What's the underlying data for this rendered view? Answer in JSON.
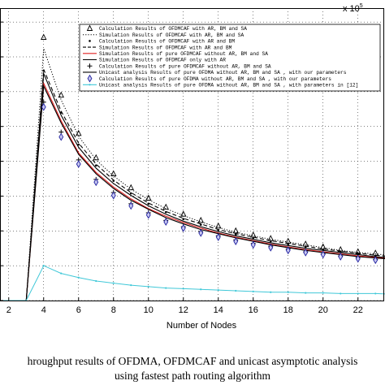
{
  "chart_data": {
    "type": "line",
    "xlabel": "Number of Nodes",
    "ylabel": "",
    "y_multiplier_label": "x 10",
    "y_multiplier_exponent": "5",
    "xlim": [
      1.5,
      23.5
    ],
    "ylim": [
      0,
      4.2
    ],
    "x_ticks": [
      2,
      4,
      6,
      8,
      10,
      12,
      14,
      16,
      18,
      20,
      22
    ],
    "y_gridlines": [
      0,
      0.5,
      1,
      1.5,
      2,
      2.5,
      3,
      3.5,
      4
    ],
    "grid": true,
    "legend_position": "top-right",
    "x": [
      1,
      2,
      3,
      4,
      5,
      6,
      7,
      8,
      9,
      10,
      11,
      12,
      13,
      14,
      15,
      16,
      17,
      18,
      19,
      20,
      21,
      22,
      23,
      24
    ],
    "series": [
      {
        "name": "Calculation Results of OFDMCAF with AR, BM and SA",
        "style": "triangle",
        "color": "#000000",
        "values": [
          0,
          0,
          0,
          3.78,
          2.95,
          2.4,
          2.05,
          1.82,
          1.62,
          1.47,
          1.34,
          1.24,
          1.15,
          1.07,
          1.0,
          0.94,
          0.89,
          0.85,
          0.81,
          0.77,
          0.73,
          0.7,
          0.68,
          0.65
        ]
      },
      {
        "name": "Simulation Results of OFDMCAF with AR, BM and SA",
        "style": "dotted",
        "color": "#000000",
        "values": [
          0,
          0,
          0,
          3.62,
          2.88,
          2.36,
          2.02,
          1.79,
          1.6,
          1.45,
          1.32,
          1.22,
          1.13,
          1.05,
          0.98,
          0.93,
          0.88,
          0.84,
          0.8,
          0.76,
          0.72,
          0.69,
          0.67,
          0.64
        ]
      },
      {
        "name": "Calculation Results of OFDMCAF with AR and BM",
        "style": "point",
        "color": "#000000",
        "values": [
          0,
          0,
          0,
          3.3,
          2.7,
          2.24,
          1.94,
          1.72,
          1.54,
          1.39,
          1.27,
          1.17,
          1.09,
          1.01,
          0.95,
          0.9,
          0.85,
          0.81,
          0.77,
          0.73,
          0.7,
          0.67,
          0.64,
          0.62
        ]
      },
      {
        "name": "Simulation Results of OFDMCAF with AR and BM",
        "style": "dashed",
        "color": "#000000",
        "values": [
          0,
          0,
          0,
          3.32,
          2.72,
          2.26,
          1.96,
          1.73,
          1.55,
          1.4,
          1.28,
          1.18,
          1.1,
          1.02,
          0.96,
          0.91,
          0.86,
          0.82,
          0.78,
          0.74,
          0.71,
          0.68,
          0.65,
          0.63
        ]
      },
      {
        "name": "Simulation Results of pure OFDMCAF without AR, BM and SA",
        "style": "solid",
        "color": "#e02020",
        "values": [
          0,
          0,
          0,
          3.12,
          2.58,
          2.12,
          1.84,
          1.63,
          1.46,
          1.32,
          1.21,
          1.12,
          1.04,
          0.97,
          0.91,
          0.86,
          0.81,
          0.77,
          0.73,
          0.7,
          0.67,
          0.64,
          0.62,
          0.6
        ]
      },
      {
        "name": "Simulation Results of OFDMCAF only with AR",
        "style": "solid",
        "color": "#000000",
        "values": [
          0,
          0,
          0,
          3.26,
          2.66,
          2.2,
          1.9,
          1.68,
          1.51,
          1.36,
          1.24,
          1.14,
          1.06,
          0.99,
          0.93,
          0.88,
          0.83,
          0.79,
          0.75,
          0.72,
          0.69,
          0.66,
          0.63,
          0.61
        ]
      },
      {
        "name": "Calculation Results of pure OFDMCAF without AR, BM and SA",
        "style": "plus",
        "color": "#000000",
        "values": [
          0,
          0,
          0,
          2.85,
          2.42,
          2.02,
          1.74,
          1.55,
          1.39,
          1.26,
          1.15,
          1.06,
          0.99,
          0.93,
          0.87,
          0.82,
          0.78,
          0.74,
          0.7,
          0.67,
          0.64,
          0.62,
          0.59,
          0.57
        ]
      },
      {
        "name": "Unicast analysis Results of pure OFDMA without AR, BM and SA , with our parameters",
        "style": "solid",
        "color": "#000000",
        "values": [
          0,
          0,
          0,
          3.08,
          2.55,
          2.1,
          1.82,
          1.61,
          1.44,
          1.31,
          1.19,
          1.1,
          1.02,
          0.96,
          0.9,
          0.85,
          0.8,
          0.76,
          0.72,
          0.69,
          0.66,
          0.63,
          0.61,
          0.59
        ]
      },
      {
        "name": "Calculation Results of pure OFDMA without AR, BM and SA , with our parameters",
        "style": "diamond",
        "color": "#2020a0",
        "values": [
          0,
          0,
          0,
          2.78,
          2.35,
          1.96,
          1.7,
          1.51,
          1.36,
          1.23,
          1.13,
          1.04,
          0.97,
          0.91,
          0.85,
          0.8,
          0.76,
          0.72,
          0.69,
          0.66,
          0.63,
          0.6,
          0.58,
          0.56
        ]
      },
      {
        "name": "Unicast analysis Results of pure OFDMA without AR, BM and SA , with parameters in [12]",
        "style": "cyan-point",
        "color": "#40c8d8",
        "values": [
          0,
          0,
          0,
          0.5,
          0.39,
          0.33,
          0.28,
          0.25,
          0.22,
          0.2,
          0.18,
          0.17,
          0.16,
          0.15,
          0.14,
          0.13,
          0.12,
          0.12,
          0.11,
          0.11,
          0.1,
          0.1,
          0.1,
          0.09
        ]
      }
    ]
  },
  "caption": {
    "line1": "hroughput results of OFDMA, OFDMCAF and unicast asymptotic analysis",
    "line2": "using fastest path routing algorithm"
  }
}
